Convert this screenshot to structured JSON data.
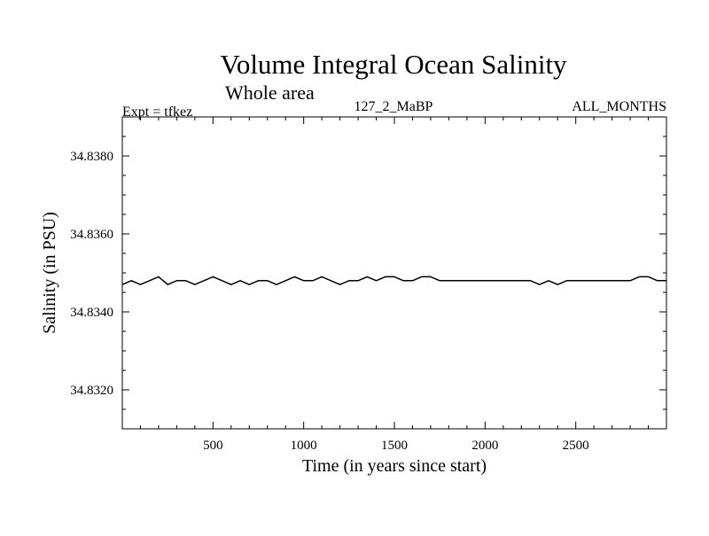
{
  "chart_data": {
    "type": "line",
    "title": "Volume Integral Ocean Salinity",
    "subtitle": "Whole area",
    "annotations": {
      "left": "Expt = tfkez",
      "center": "127_2_MaBP",
      "right": "ALL_MONTHS"
    },
    "xlabel": "Time (in years since start)",
    "ylabel": "Salinity (in PSU)",
    "xlim": [
      0,
      3000
    ],
    "ylim": [
      34.831,
      34.839
    ],
    "x_ticks": [
      500,
      1000,
      1500,
      2000,
      2500
    ],
    "x_tick_labels": [
      "500",
      "1000",
      "1500",
      "2000",
      "2500"
    ],
    "y_ticks": [
      34.832,
      34.834,
      34.836,
      34.838
    ],
    "y_tick_labels": [
      "34.8320",
      "34.8340",
      "34.8360",
      "34.8380"
    ],
    "grid": false,
    "series": [
      {
        "color": "#000000",
        "x": [
          0,
          50,
          100,
          150,
          200,
          250,
          300,
          350,
          400,
          450,
          500,
          550,
          600,
          650,
          700,
          750,
          800,
          850,
          900,
          950,
          1000,
          1050,
          1100,
          1150,
          1200,
          1250,
          1300,
          1350,
          1400,
          1450,
          1500,
          1550,
          1600,
          1650,
          1700,
          1750,
          1800,
          1850,
          1900,
          1950,
          2000,
          2050,
          2100,
          2150,
          2200,
          2250,
          2300,
          2350,
          2400,
          2450,
          2500,
          2550,
          2600,
          2650,
          2700,
          2750,
          2800,
          2850,
          2900,
          2950,
          3000
        ],
        "y": [
          34.8347,
          34.8348,
          34.8347,
          34.8348,
          34.8349,
          34.8347,
          34.8348,
          34.8348,
          34.8347,
          34.8348,
          34.8349,
          34.8348,
          34.8347,
          34.8348,
          34.8347,
          34.8348,
          34.8348,
          34.8347,
          34.8348,
          34.8349,
          34.8348,
          34.8348,
          34.8349,
          34.8348,
          34.8347,
          34.8348,
          34.8348,
          34.8349,
          34.8348,
          34.8349,
          34.8349,
          34.8348,
          34.8348,
          34.8349,
          34.8349,
          34.8348,
          34.8348,
          34.8348,
          34.8348,
          34.8348,
          34.8348,
          34.8348,
          34.8348,
          34.8348,
          34.8348,
          34.8348,
          34.8347,
          34.8348,
          34.8347,
          34.8348,
          34.8348,
          34.8348,
          34.8348,
          34.8348,
          34.8348,
          34.8348,
          34.8348,
          34.8349,
          34.8349,
          34.8348,
          34.8348
        ]
      }
    ]
  }
}
